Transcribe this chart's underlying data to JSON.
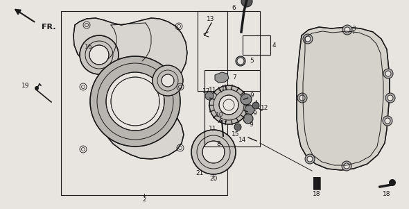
{
  "bg_color": "#e8e5e0",
  "line_color": "#1a1a1a",
  "fig_width": 5.9,
  "fig_height": 3.01,
  "dpi": 100,
  "white": "#ffffff",
  "gray": "#aaaaaa"
}
